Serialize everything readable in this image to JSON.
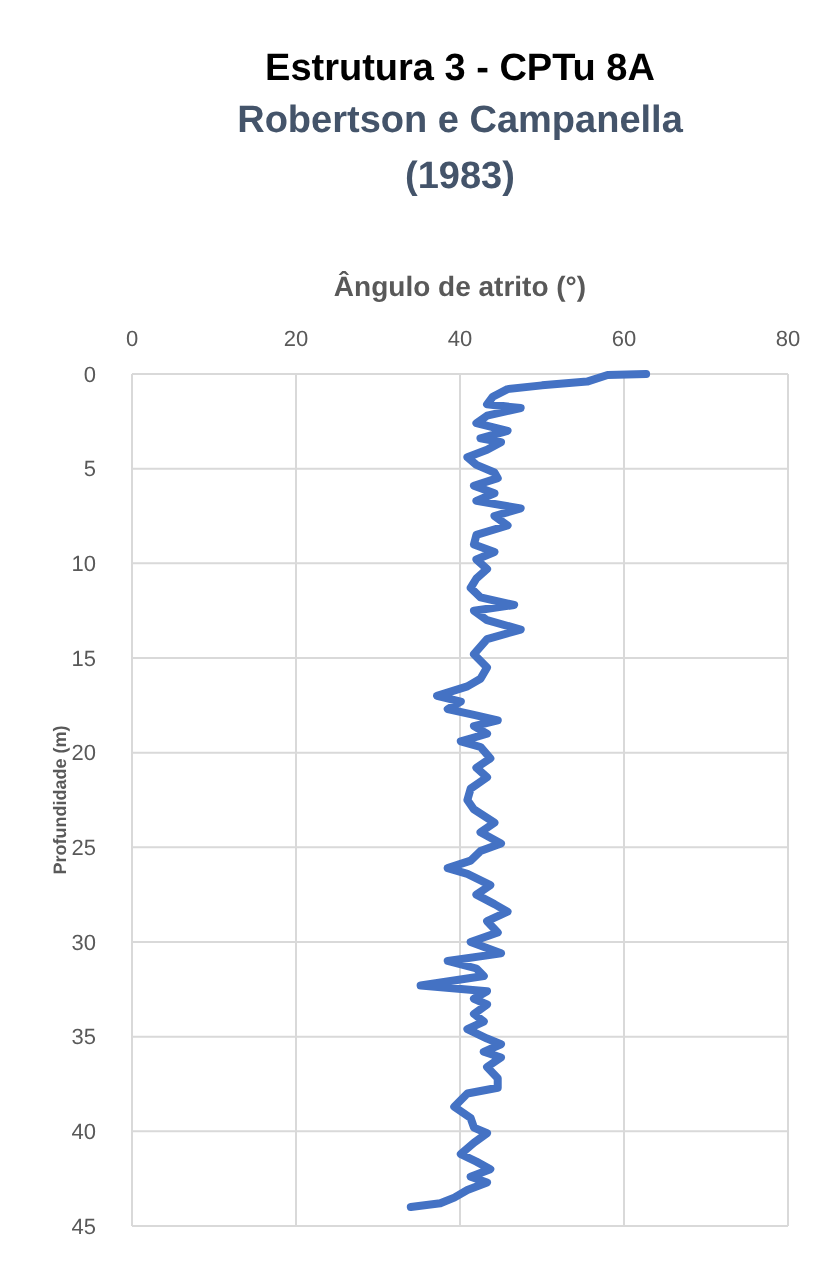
{
  "chart_data": {
    "type": "line",
    "title": "Estrutura 3 - CPTu 8A",
    "subtitle": "Robertson e Campanella (1983)",
    "xlabel": "Ângulo de atrito (°)",
    "ylabel": "Profundidade (m)",
    "xlim": [
      0,
      80
    ],
    "xticks": [
      0,
      20,
      40,
      60,
      80
    ],
    "ylim": [
      45,
      0
    ],
    "yticks": [
      0,
      5,
      10,
      15,
      20,
      25,
      30,
      35,
      40,
      45
    ],
    "grid": true,
    "marker": "none",
    "series": [
      {
        "color": "#4472c4",
        "x": [
          62.7,
          58,
          55.5,
          50,
          45.8,
          44,
          43.3,
          47.4,
          43.3,
          42,
          45.8,
          42.5,
          45,
          43.3,
          40.9,
          42,
          44.2,
          44.6,
          41.7,
          44.2,
          42,
          47.4,
          44.2,
          45.8,
          42,
          41.7,
          44.2,
          42,
          43.3,
          42,
          41.3,
          42.5,
          46.6,
          41.7,
          43.3,
          47.4,
          43.3,
          41.7,
          43.3,
          42.5,
          40.9,
          37.2,
          40.1,
          38.5,
          41.7,
          44.6,
          41.7,
          43.3,
          40.1,
          42.5,
          43.7,
          42,
          43.3,
          41.3,
          40.9,
          41.7,
          44.2,
          42.5,
          45,
          42.5,
          41.3,
          38.5,
          40.9,
          43.7,
          42,
          44.2,
          45.8,
          43.3,
          44.6,
          41.3,
          45,
          38.5,
          42,
          42.9,
          35.2,
          43.3,
          41.7,
          43.3,
          41.7,
          42.9,
          40.9,
          43.3,
          45,
          42.9,
          45,
          43.3,
          44.6,
          44.6,
          40.9,
          39.3,
          41.3,
          41.7,
          43.3,
          41.7,
          40.1,
          42,
          43.7,
          41.3,
          43.3,
          40.9,
          39.3,
          37.6,
          34
        ],
        "values": [
          0,
          0.05,
          0.4,
          0.6,
          0.8,
          1.2,
          1.6,
          1.8,
          2.2,
          2.6,
          3,
          3.4,
          3.6,
          4,
          4.4,
          4.8,
          5.2,
          5.5,
          5.9,
          6.3,
          6.7,
          7.1,
          7.5,
          8,
          8.5,
          9,
          9.4,
          9.8,
          10.3,
          10.8,
          11.3,
          11.8,
          12.2,
          12.5,
          13,
          13.5,
          14,
          14.8,
          15.5,
          16.1,
          16.5,
          17,
          17.3,
          17.7,
          18,
          18.3,
          18.6,
          19,
          19.4,
          19.7,
          20.3,
          20.8,
          21.3,
          21.9,
          22.5,
          23,
          23.7,
          24.2,
          24.8,
          25.2,
          25.7,
          26.1,
          26.4,
          27,
          27.5,
          28,
          28.4,
          28.9,
          29.5,
          30,
          30.6,
          31,
          31.4,
          31.8,
          32.3,
          32.6,
          33,
          33.3,
          33.8,
          34.2,
          34.6,
          35.1,
          35.4,
          35.8,
          36.1,
          36.6,
          37.2,
          37.7,
          38,
          38.7,
          39.3,
          39.8,
          40.1,
          40.6,
          41.2,
          41.6,
          42,
          42.4,
          42.7,
          43.1,
          43.5,
          43.8,
          44
        ]
      }
    ]
  }
}
